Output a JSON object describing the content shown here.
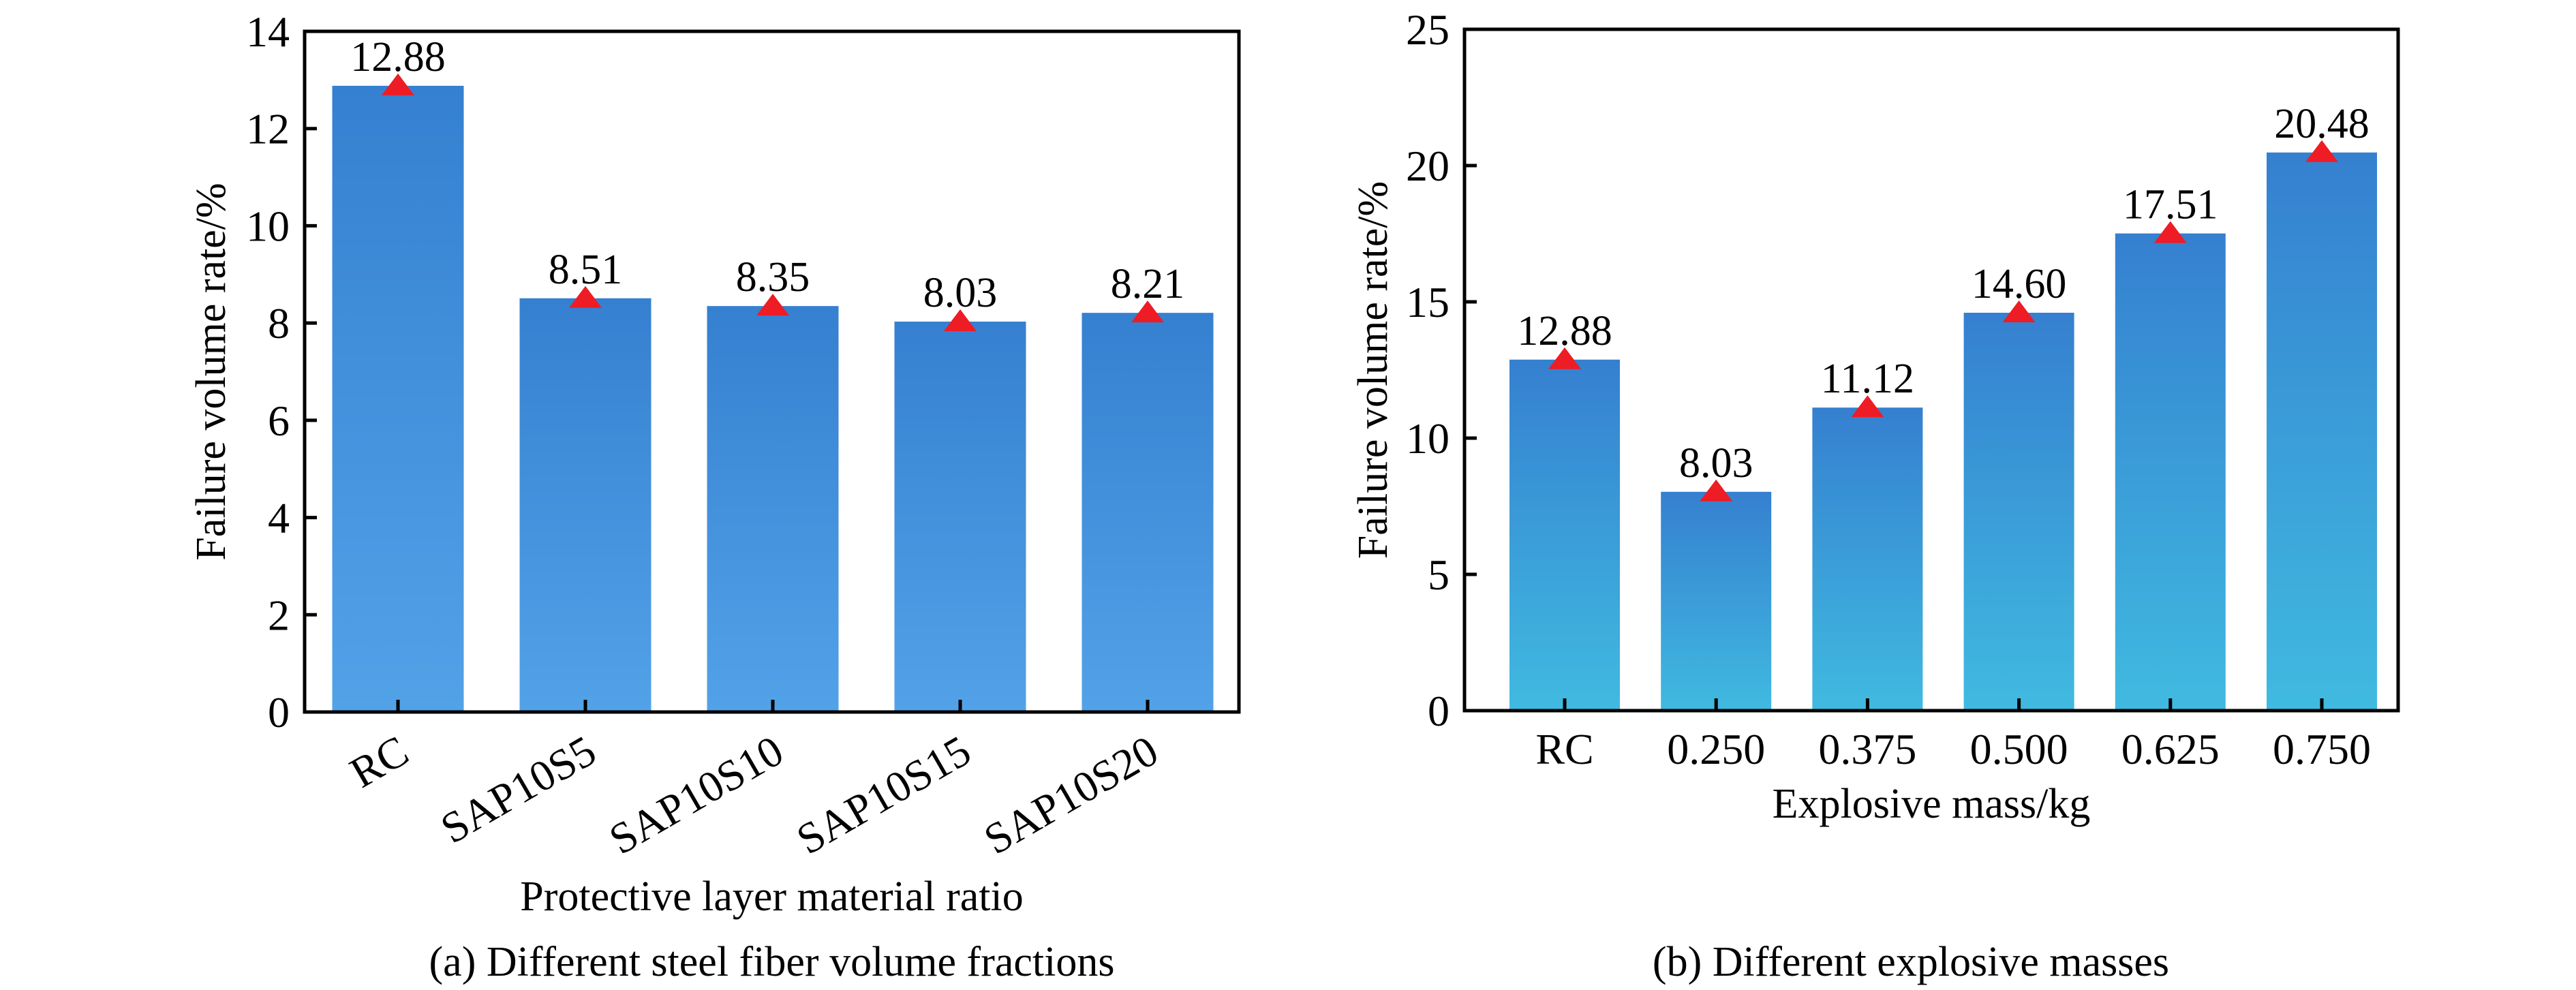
{
  "chart_data": [
    {
      "id": "a",
      "type": "bar",
      "caption": "(a) Different steel fiber volume fractions",
      "xlabel": "Protective layer material ratio",
      "ylabel": "Failure volume rate/%",
      "categories": [
        "RC",
        "SAP10S5",
        "SAP10S10",
        "SAP10S15",
        "SAP10S20"
      ],
      "values": [
        12.88,
        8.51,
        8.35,
        8.03,
        8.21
      ],
      "data_labels": [
        "12.88",
        "8.51",
        "8.35",
        "8.03",
        "8.21"
      ],
      "ylim": [
        0,
        14
      ],
      "yticks": [
        0,
        2,
        4,
        6,
        8,
        10,
        12,
        14
      ],
      "xtick_rotation": "rotated",
      "grid": false,
      "legend": "none",
      "colors": {
        "bar_top": "#3580D0",
        "bar_bottom": "#52A2E8",
        "marker": "#EE1C25"
      },
      "marker": "triangle at bar top"
    },
    {
      "id": "b",
      "type": "bar",
      "caption": "(b) Different explosive masses",
      "xlabel": "Explosive mass/kg",
      "ylabel": "Failure volume rate/%",
      "categories": [
        "RC",
        "0.250",
        "0.375",
        "0.500",
        "0.625",
        "0.750"
      ],
      "values": [
        12.88,
        8.03,
        11.12,
        14.6,
        17.51,
        20.48
      ],
      "data_labels": [
        "12.88",
        "8.03",
        "11.12",
        "14.60",
        "17.51",
        "20.48"
      ],
      "ylim": [
        0,
        25
      ],
      "yticks": [
        0,
        5,
        10,
        15,
        20,
        25
      ],
      "xtick_rotation": "horizontal",
      "grid": false,
      "legend": "none",
      "colors": {
        "bar_top": "#3580D0",
        "bar_bottom": "#40BAE0",
        "marker": "#EE1C25"
      },
      "marker": "triangle at bar top"
    }
  ]
}
